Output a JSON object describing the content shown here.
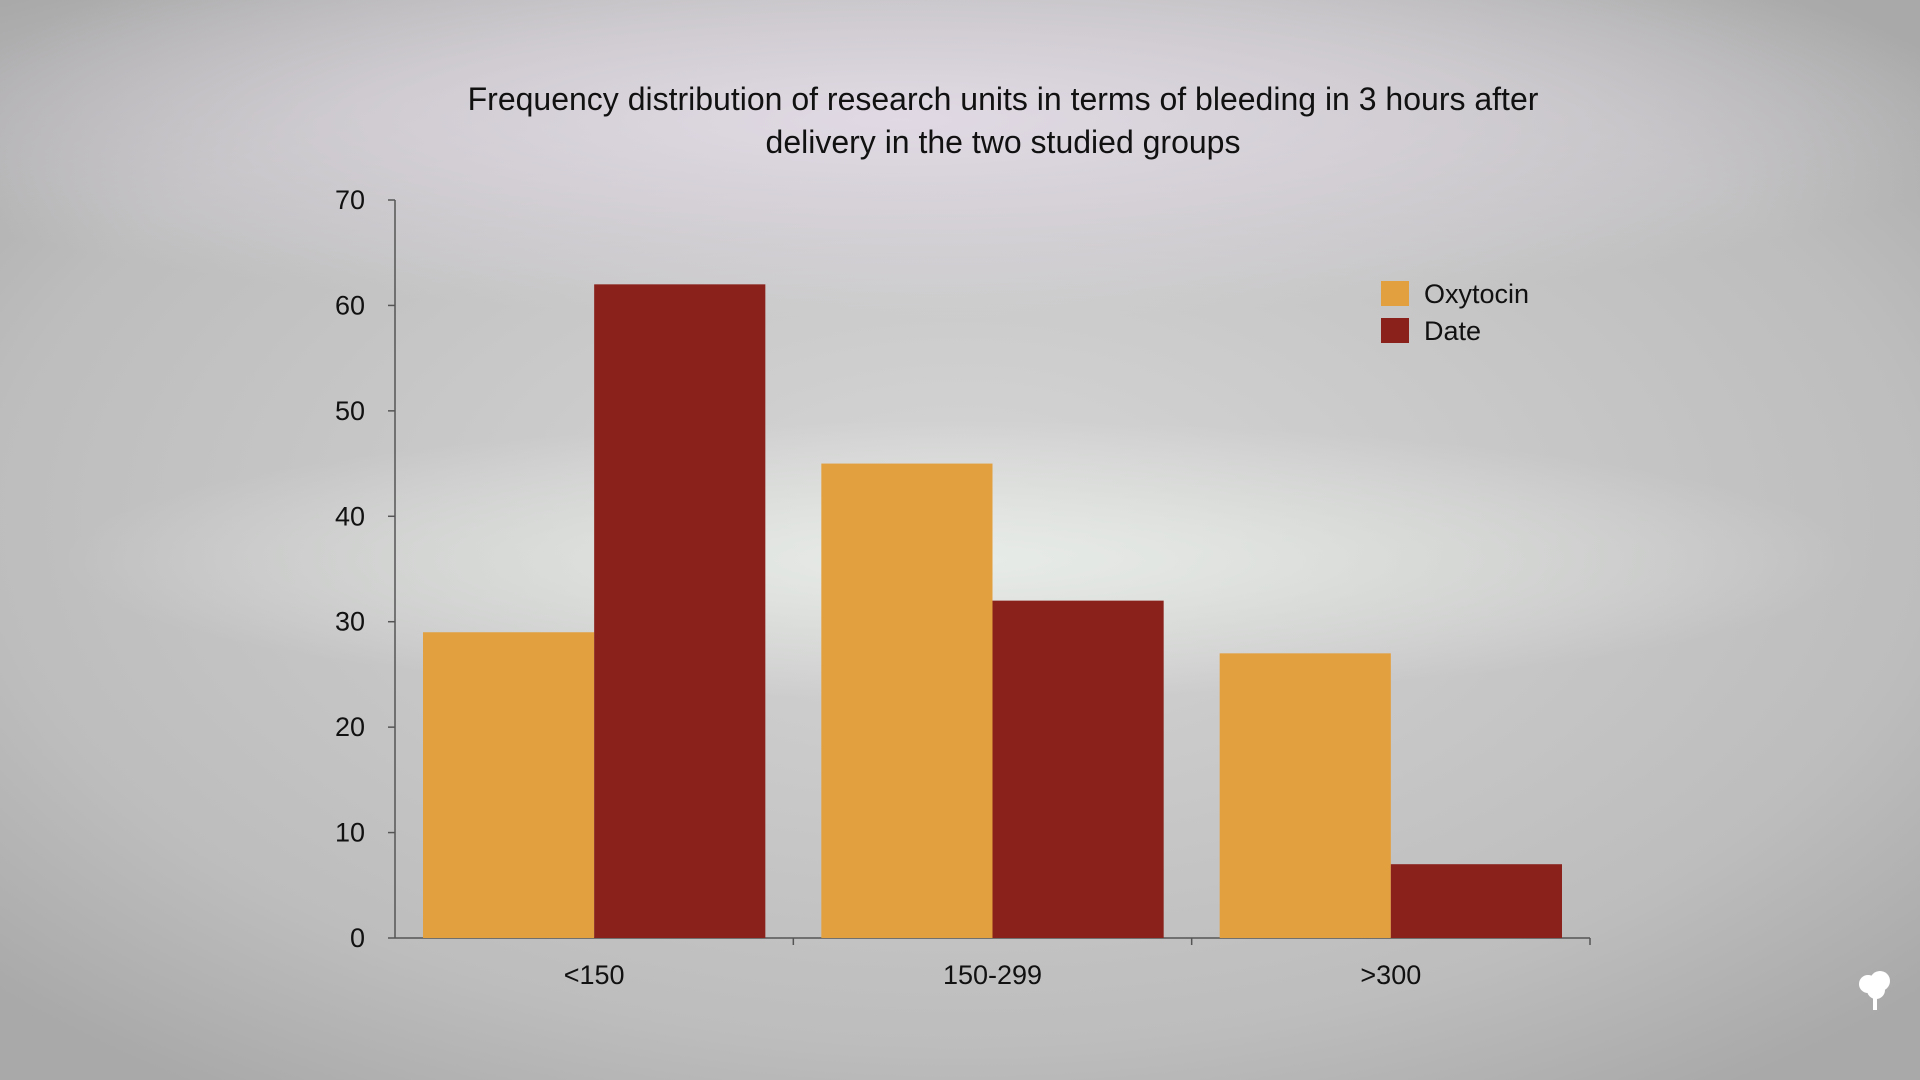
{
  "colors": {
    "Oxytocin": "#e3a03e",
    "Date": "#8a211b",
    "axis": "#555555"
  },
  "chart_data": {
    "type": "bar",
    "title": "Frequency distribution of research units in terms of bleeding in 3 hours after delivery in the two studied groups",
    "title_lines": [
      "Frequency distribution of research units in terms of bleeding in 3 hours after",
      "delivery in the two studied groups"
    ],
    "categories": [
      "<150",
      "150-299",
      ">300"
    ],
    "series": [
      {
        "name": "Oxytocin",
        "values": [
          29,
          45,
          27
        ]
      },
      {
        "name": "Date",
        "values": [
          62,
          32,
          7
        ]
      }
    ],
    "xlabel": "",
    "ylabel": "",
    "ylim": [
      0,
      70
    ],
    "yticks": [
      "0",
      "10",
      "20",
      "30",
      "40",
      "50",
      "60",
      "70"
    ],
    "grid": false,
    "legend_position": "top-right"
  },
  "logo": {
    "name": "tree-icon"
  }
}
